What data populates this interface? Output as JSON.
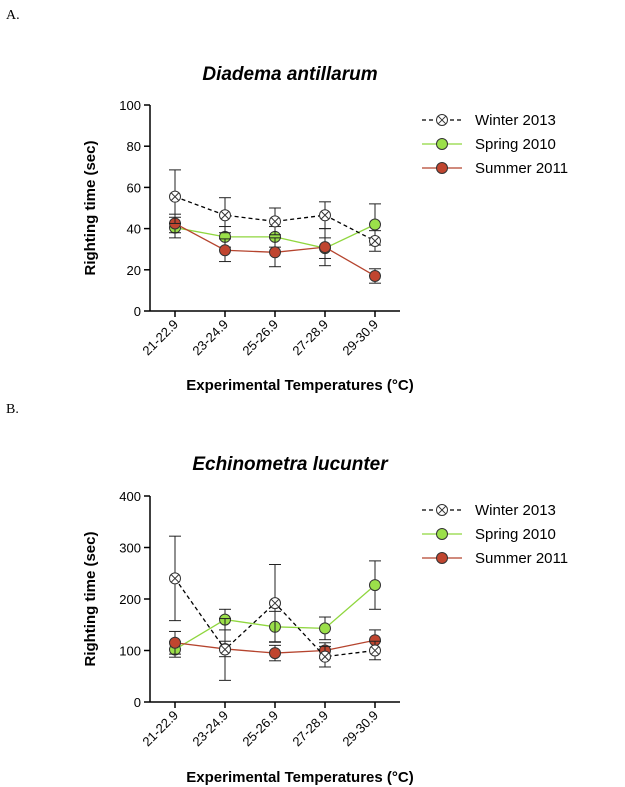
{
  "panels": [
    {
      "letter": "A."
    },
    {
      "letter": "B."
    }
  ],
  "chart_data": [
    {
      "type": "line",
      "title": "Diadema antillarum",
      "xlabel": "Experimental Temperatures (°C)",
      "ylabel": "Righting time (sec)",
      "categories": [
        "21-22.9",
        "23-24.9",
        "25-26.9",
        "27-28.9",
        "29-30.9"
      ],
      "ylim": [
        0,
        100
      ],
      "yticks": [
        0,
        20,
        40,
        60,
        80,
        100
      ],
      "legend_position": "right",
      "series": [
        {
          "name": "Winter 2013",
          "values": [
            55.5,
            46.5,
            43.5,
            46.5,
            34
          ],
          "err": [
            13,
            8.5,
            6.5,
            6.5,
            5
          ],
          "style": "dashed",
          "marker": "crossed-circle",
          "line_color": "#000000",
          "fill": "#ffffff"
        },
        {
          "name": "Spring 2010",
          "values": [
            40.5,
            36,
            36,
            30.5,
            42
          ],
          "err": [
            5,
            5,
            5,
            5,
            10
          ],
          "style": "solid",
          "marker": "circle",
          "line_color": "#8fd63e",
          "fill": "#9be04a"
        },
        {
          "name": "Summer 2011",
          "values": [
            42.5,
            29.5,
            28.5,
            31,
            17
          ],
          "err": [
            4.5,
            5.5,
            7,
            9,
            3.5
          ],
          "style": "solid",
          "marker": "circle",
          "line_color": "#b5442e",
          "fill": "#c0452f"
        }
      ]
    },
    {
      "type": "line",
      "title": "Echinometra lucunter",
      "xlabel": "Experimental Temperatures (°C)",
      "ylabel": "Righting time (sec)",
      "categories": [
        "21-22.9",
        "23-24.9",
        "25-26.9",
        "27-28.9",
        "29-30.9"
      ],
      "ylim": [
        0,
        400
      ],
      "yticks": [
        0,
        100,
        200,
        300,
        400
      ],
      "legend_position": "right",
      "series": [
        {
          "name": "Winter 2013",
          "values": [
            240,
            102,
            192,
            88,
            100
          ],
          "err": [
            82,
            60,
            75,
            20,
            18
          ],
          "style": "dashed",
          "marker": "crossed-circle",
          "line_color": "#000000",
          "fill": "#ffffff"
        },
        {
          "name": "Spring 2010",
          "values": [
            102,
            160,
            146,
            143,
            227
          ],
          "err": [
            15,
            20,
            30,
            22,
            47
          ],
          "style": "solid",
          "marker": "circle",
          "line_color": "#8fd63e",
          "fill": "#9be04a"
        },
        {
          "name": "Summer 2011",
          "values": [
            115,
            103,
            95,
            100,
            120
          ],
          "err": [
            22,
            15,
            15,
            15,
            20
          ],
          "style": "solid",
          "marker": "circle",
          "line_color": "#b5442e",
          "fill": "#c0452f"
        }
      ]
    }
  ]
}
